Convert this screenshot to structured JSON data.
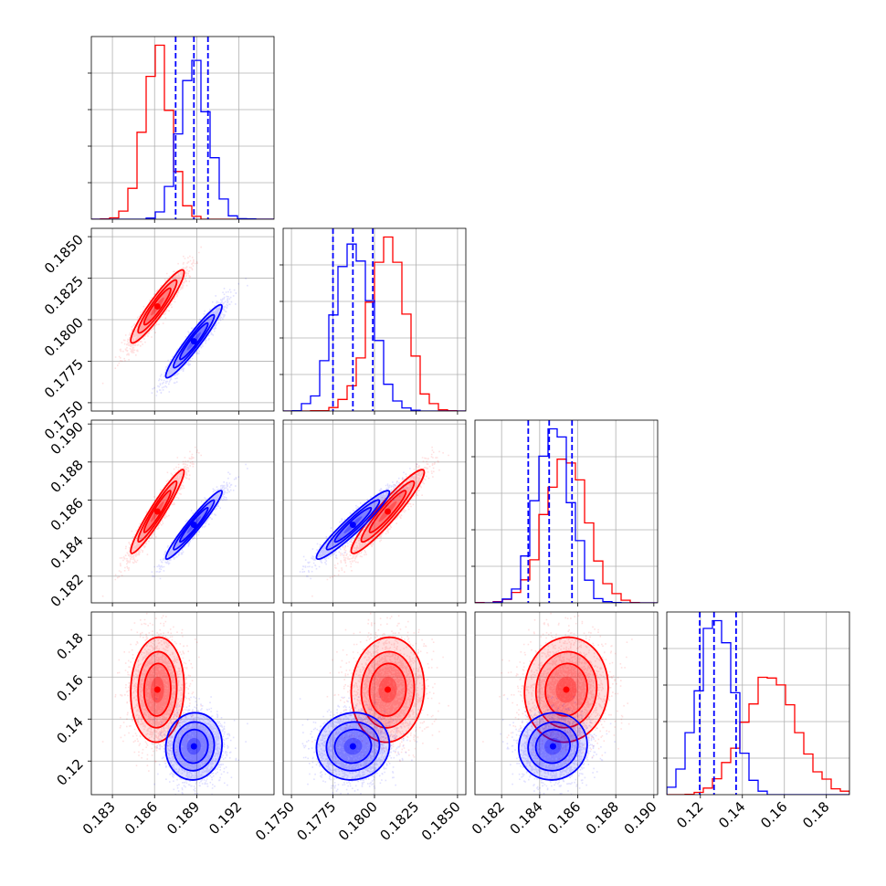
{
  "chart_data": {
    "type": "corner",
    "title": "",
    "grid": true,
    "series": [
      {
        "name": "",
        "color": "#ff0000",
        "mean": [
          0.1862,
          0.1808,
          0.1854,
          0.154
        ],
        "sd": [
          0.00095,
          0.0011,
          0.0011,
          0.0125
        ],
        "corr": [
          [
            1,
            0.93,
            0.95,
            0.05
          ],
          [
            0.93,
            1,
            0.94,
            0.05
          ],
          [
            0.95,
            0.94,
            1,
            0.05
          ],
          [
            0.05,
            0.05,
            0.05,
            1
          ]
        ]
      },
      {
        "name": "",
        "color": "#0000ff",
        "mean": [
          0.1888,
          0.1787,
          0.1847,
          0.127
        ],
        "sd": [
          0.001,
          0.0011,
          0.0009,
          0.008
        ],
        "corr": [
          [
            1,
            0.95,
            0.96,
            0.05
          ],
          [
            0.95,
            1,
            0.95,
            0.05
          ],
          [
            0.96,
            0.95,
            1,
            0.05
          ],
          [
            0.05,
            0.05,
            0.05,
            1
          ]
        ]
      }
    ],
    "quantile_lines": [
      {
        "color": "#0000ff",
        "style": "dashed",
        "values": [
          0.1875,
          0.1888,
          0.1898
        ]
      },
      {
        "color": "#0000ff",
        "style": "dashed",
        "values": [
          0.1775,
          0.1787,
          0.1799
        ]
      },
      {
        "color": "#0000ff",
        "style": "dashed",
        "values": [
          0.1834,
          0.1845,
          0.1857
        ]
      },
      {
        "color": "#0000ff",
        "style": "dashed",
        "values": [
          0.1197,
          0.1265,
          0.137
        ]
      }
    ],
    "axes": [
      {
        "range": [
          0.1815,
          0.1945
        ],
        "ticks": [
          0.183,
          0.186,
          0.189,
          0.192
        ],
        "labels": [
          "0.183",
          "0.186",
          "0.189",
          "0.192"
        ]
      },
      {
        "range": [
          0.1745,
          0.1855
        ],
        "ticks": [
          0.175,
          0.1775,
          0.18,
          0.1825,
          0.185
        ],
        "labels": [
          "0.1750",
          "0.1775",
          "0.1800",
          "0.1825",
          "0.1850"
        ]
      },
      {
        "range": [
          0.1806,
          0.1902
        ],
        "ticks": [
          0.182,
          0.184,
          0.186,
          0.188,
          0.19
        ],
        "labels": [
          "0.182",
          "0.184",
          "0.186",
          "0.188",
          "0.190"
        ]
      },
      {
        "range": [
          0.104,
          0.191
        ],
        "ticks": [
          0.12,
          0.14,
          0.16,
          0.18
        ],
        "labels": [
          "0.12",
          "0.14",
          "0.16",
          "0.18"
        ]
      }
    ]
  }
}
